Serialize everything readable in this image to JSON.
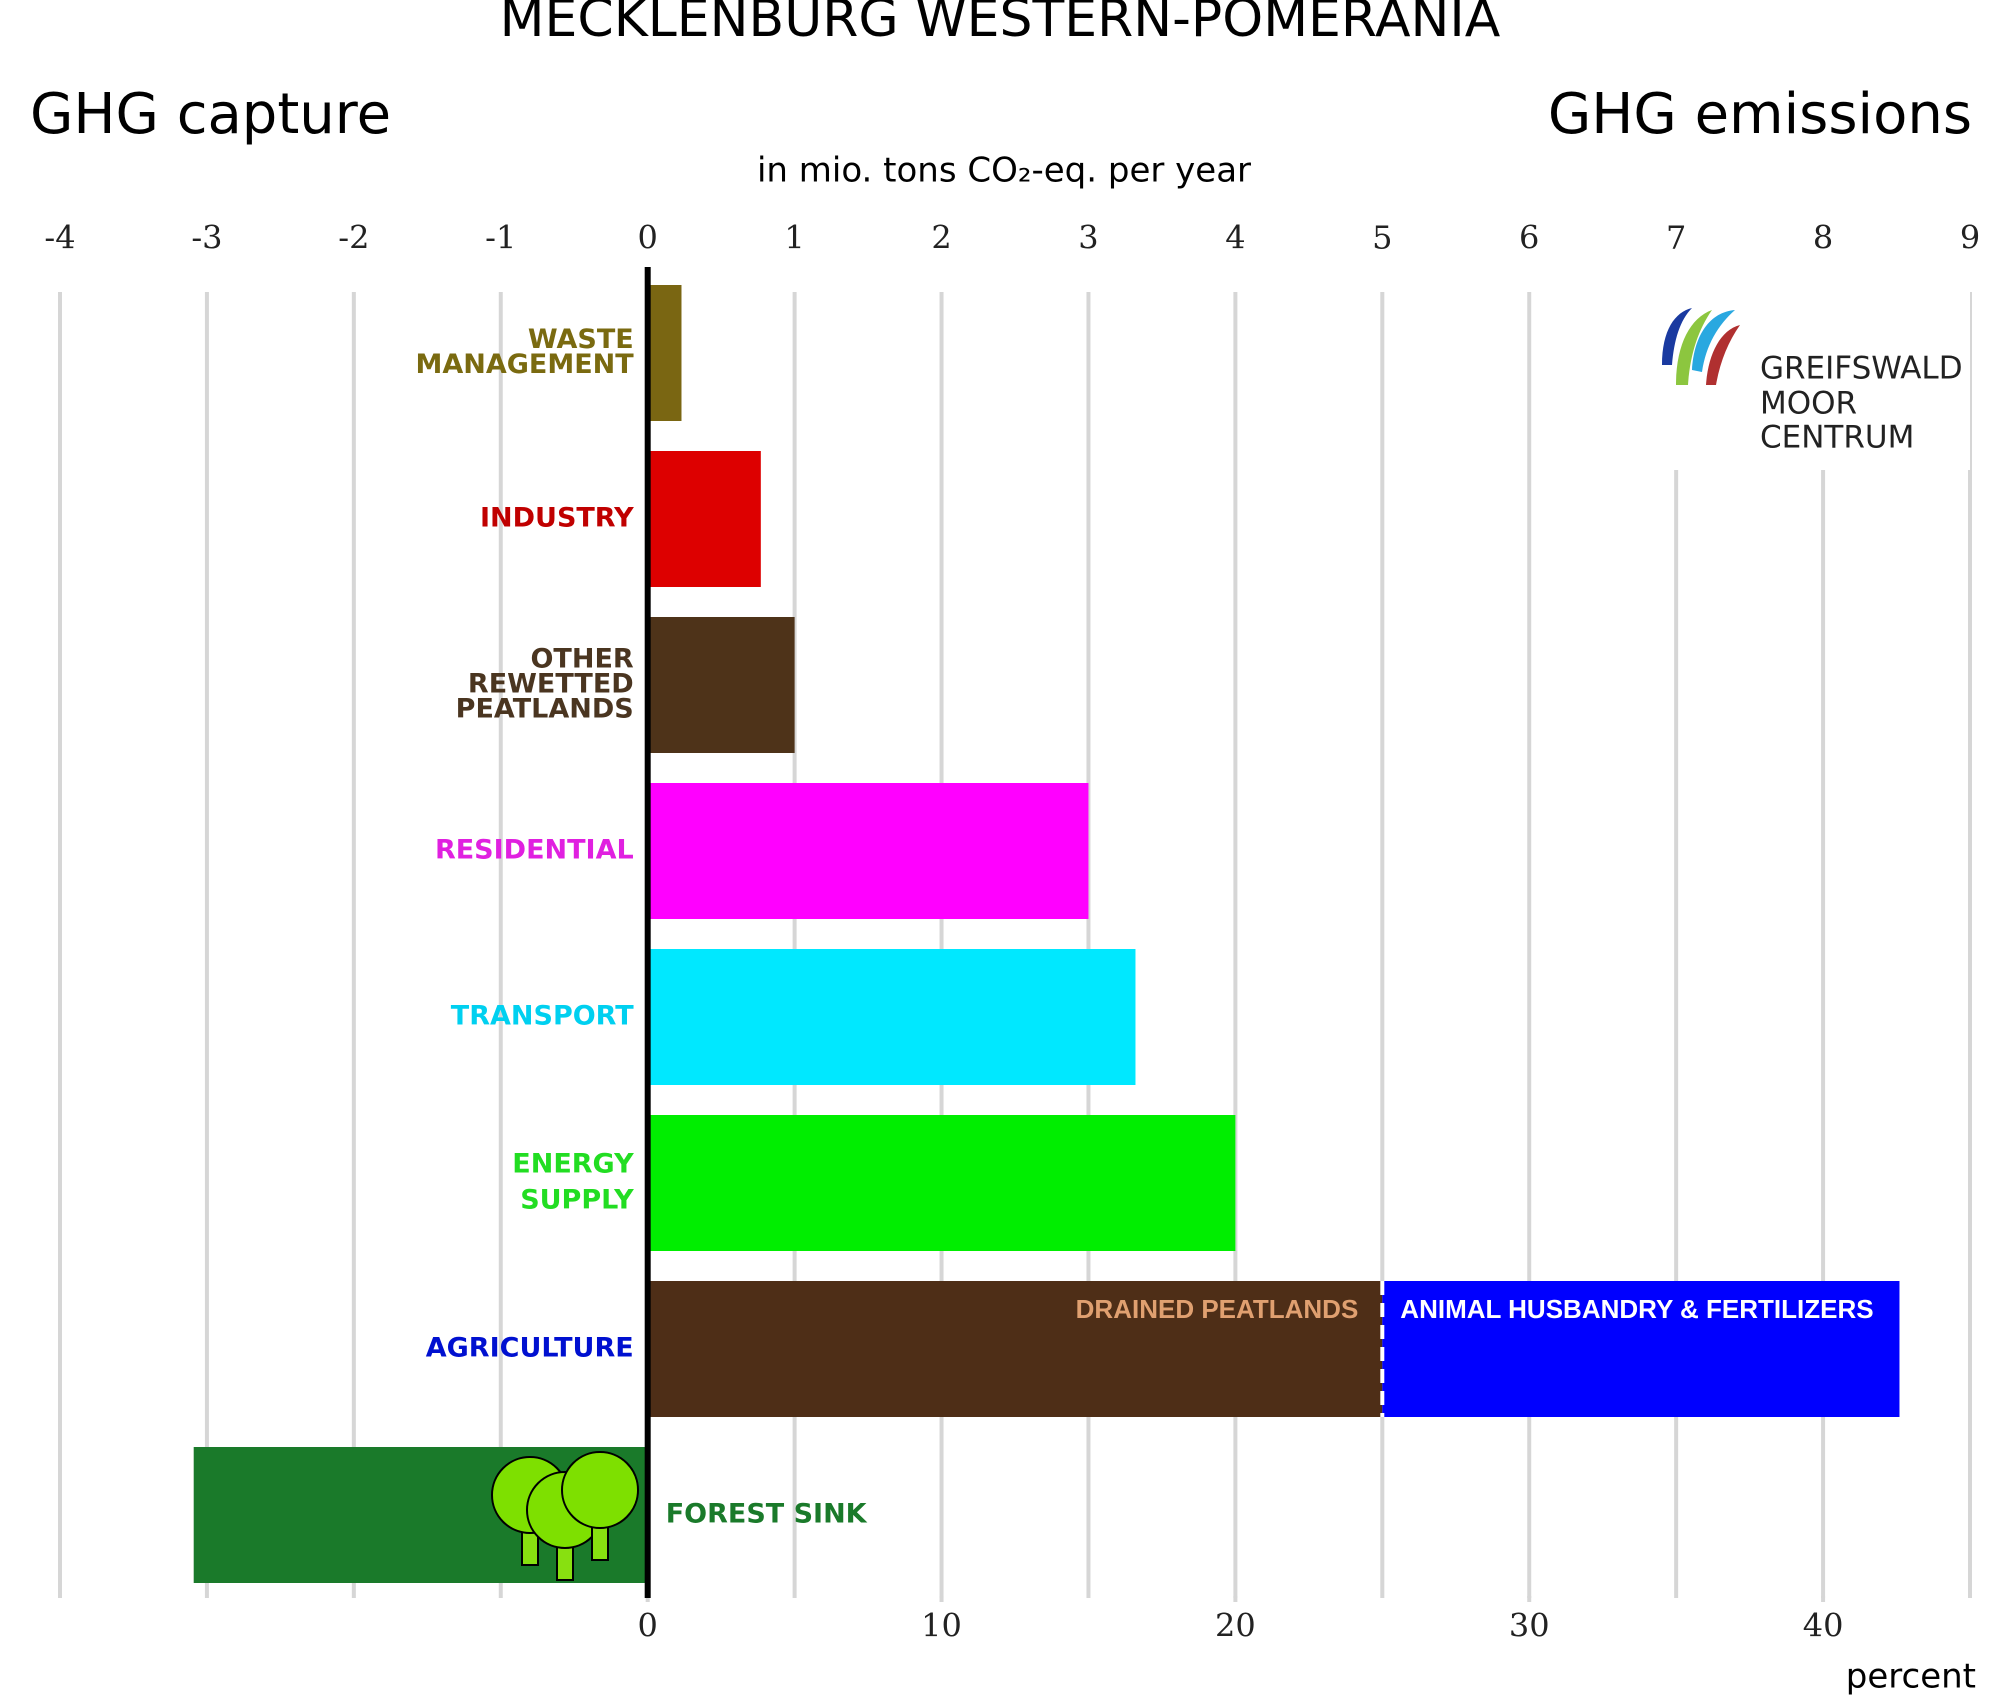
{
  "chart_data": {
    "type": "bar",
    "orientation": "horizontal",
    "title": "MECKLENBURG WESTERN-POMERANIA",
    "left_heading": "GHG capture",
    "right_heading": "GHG emissions",
    "subtitle": "in mio. tons CO₂-eq. per year",
    "xlim": [
      -4,
      9
    ],
    "xticks": [
      -4,
      -3,
      -2,
      -1,
      0,
      1,
      2,
      3,
      4,
      5,
      6,
      7,
      8,
      9
    ],
    "x2label": "percent",
    "x2lim": [
      -20,
      45
    ],
    "x2ticks": [
      0,
      10,
      20,
      30,
      40
    ],
    "grid": true,
    "bars": [
      {
        "label": [
          "WASTE",
          "MANAGEMENT"
        ],
        "label_color": "#7a6a10",
        "segments": [
          {
            "value": 0.23,
            "color": "#7a6612"
          }
        ]
      },
      {
        "label": [
          "INDUSTRY"
        ],
        "label_color": "#c00000",
        "segments": [
          {
            "value": 0.77,
            "color": "#dd0000"
          }
        ]
      },
      {
        "label": [
          "OTHER",
          "REWETTED",
          "PEATLANDS"
        ],
        "label_color": "#4a3520",
        "segments": [
          {
            "value": 1.0,
            "color": "#4e3319"
          }
        ]
      },
      {
        "label": [
          "RESIDENTIAL"
        ],
        "label_color": "#e020e0",
        "segments": [
          {
            "value": 3.0,
            "color": "#ff00ff"
          }
        ]
      },
      {
        "label": [
          "TRANSPORT"
        ],
        "label_color": "#00d0f0",
        "segments": [
          {
            "value": 3.32,
            "color": "#00e8ff"
          }
        ]
      },
      {
        "label": [
          "ENERGY",
          "SUPPLY"
        ],
        "label_color": "#22dd22",
        "segments": [
          {
            "value": 4.0,
            "color": "#00ee00"
          }
        ]
      },
      {
        "label": [
          "AGRICULTURE"
        ],
        "label_color": "#0010d0",
        "segments": [
          {
            "value": 5.0,
            "color": "#4e2e17",
            "label": "DRAINED PEATLANDS",
            "label_color": "#e0a070"
          },
          {
            "value": 3.52,
            "color": "#0000ff",
            "label": "ANIMAL HUSBANDRY & FERTILIZERS",
            "label_color": "#ffffff"
          }
        ]
      },
      {
        "label": [
          "FOREST SINK"
        ],
        "label_color": "#1a7a2a",
        "segments": [
          {
            "value": -3.09,
            "color": "#1a7a2a"
          }
        ]
      }
    ]
  },
  "logo": {
    "lines": [
      "GREIFSWALD",
      "MOOR",
      "CENTRUM"
    ]
  }
}
